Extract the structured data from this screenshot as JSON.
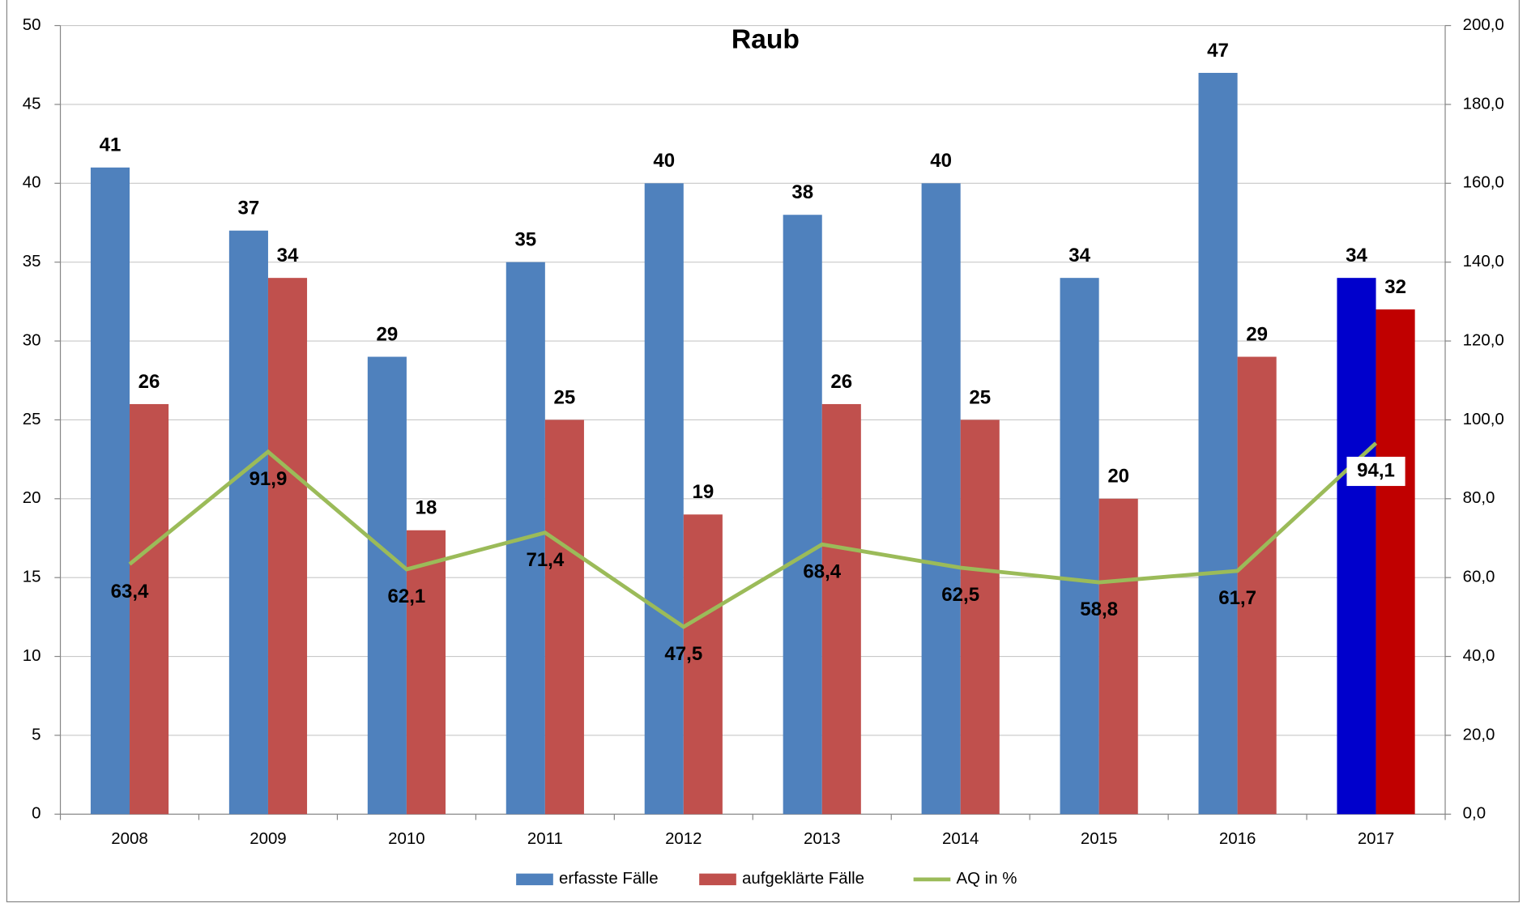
{
  "chart_data": {
    "type": "bar",
    "title": "Raub",
    "categories": [
      "2008",
      "2009",
      "2010",
      "2011",
      "2012",
      "2013",
      "2014",
      "2015",
      "2016",
      "2017"
    ],
    "series": [
      {
        "name": "erfasste Fälle",
        "type": "bar",
        "color": "#4f81bd",
        "colors": [
          "#4f81bd",
          "#4f81bd",
          "#4f81bd",
          "#4f81bd",
          "#4f81bd",
          "#4f81bd",
          "#4f81bd",
          "#4f81bd",
          "#4f81bd",
          "#0000cc"
        ],
        "values": [
          41,
          37,
          29,
          35,
          40,
          38,
          40,
          34,
          47,
          34
        ]
      },
      {
        "name": "aufgeklärte Fälle",
        "type": "bar",
        "color": "#c0504d",
        "colors": [
          "#c0504d",
          "#c0504d",
          "#c0504d",
          "#c0504d",
          "#c0504d",
          "#c0504d",
          "#c0504d",
          "#c0504d",
          "#c0504d",
          "#c00000"
        ],
        "values": [
          26,
          34,
          18,
          25,
          19,
          26,
          25,
          20,
          29,
          32
        ]
      },
      {
        "name": "AQ in %",
        "type": "line",
        "axis": "y2",
        "color": "#9bbb59",
        "values": [
          63.4,
          91.9,
          62.1,
          71.4,
          47.5,
          68.4,
          62.5,
          58.8,
          61.7,
          94.1
        ],
        "value_labels": [
          "63,4",
          "91,9",
          "62,1",
          "71,4",
          "47,5",
          "68,4",
          "62,5",
          "58,8",
          "61,7",
          "94,1"
        ]
      }
    ],
    "ylim": [
      0,
      50
    ],
    "yticks": [
      0,
      5,
      10,
      15,
      20,
      25,
      30,
      35,
      40,
      45,
      50
    ],
    "y2lim": [
      0,
      200
    ],
    "y2ticks": [
      {
        "value": 0,
        "label": "0,0"
      },
      {
        "value": 20,
        "label": "20,0"
      },
      {
        "value": 40,
        "label": "40,0"
      },
      {
        "value": 60,
        "label": "60,0"
      },
      {
        "value": 80,
        "label": "80,0"
      },
      {
        "value": 100,
        "label": "100,0"
      },
      {
        "value": 120,
        "label": "120,0"
      },
      {
        "value": 140,
        "label": "140,0"
      },
      {
        "value": 160,
        "label": "160,0"
      },
      {
        "value": 180,
        "label": "180,0"
      },
      {
        "value": 200,
        "label": "200,0"
      }
    ],
    "grid": true,
    "legend": "bottom"
  }
}
